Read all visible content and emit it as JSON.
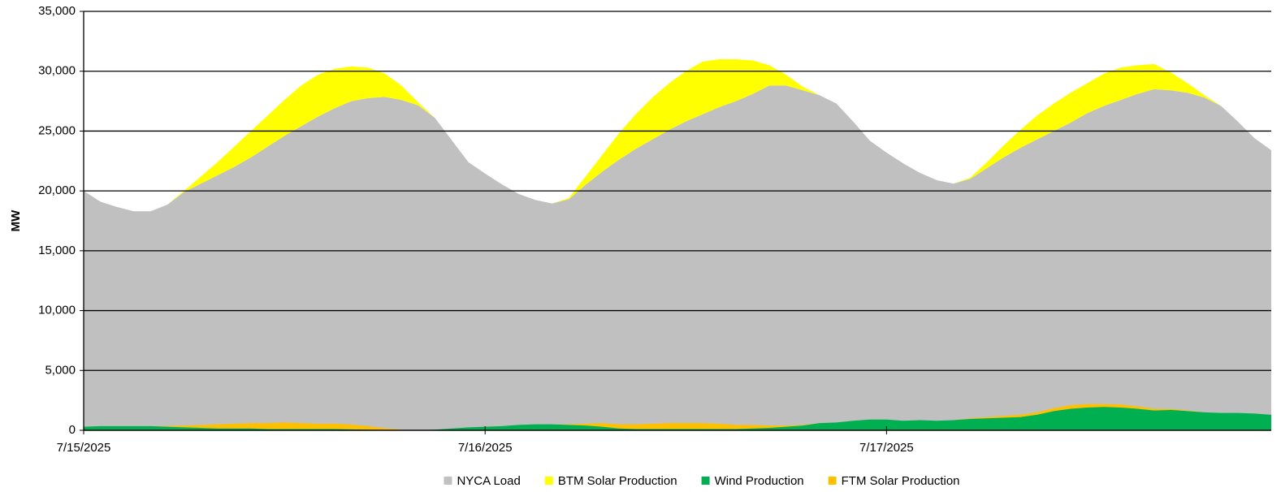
{
  "chart_data": {
    "type": "area",
    "y_label": "MW",
    "categories": [
      "7/15/2025",
      null,
      null,
      null,
      null,
      null,
      null,
      null,
      null,
      null,
      null,
      null,
      null,
      null,
      null,
      null,
      null,
      null,
      null,
      null,
      null,
      null,
      null,
      null,
      "7/16/2025",
      null,
      null,
      null,
      null,
      null,
      null,
      null,
      null,
      null,
      null,
      null,
      null,
      null,
      null,
      null,
      null,
      null,
      null,
      null,
      null,
      null,
      null,
      null,
      "7/17/2025",
      null,
      null,
      null,
      null,
      null,
      null,
      null,
      null,
      null,
      null,
      null,
      null,
      null,
      null,
      null,
      null,
      null,
      null,
      null,
      null,
      null,
      null,
      null
    ],
    "series": [
      {
        "name": "NYCA Load",
        "color": "#c0c0c0",
        "values": [
          20000,
          19100,
          18650,
          18300,
          18300,
          18850,
          19900,
          20600,
          21300,
          22000,
          22800,
          23700,
          24600,
          25400,
          26200,
          26900,
          27500,
          27750,
          27850,
          27600,
          27150,
          26100,
          24250,
          22400,
          21450,
          20550,
          19750,
          19250,
          18950,
          19300,
          20500,
          21600,
          22600,
          23500,
          24300,
          25100,
          25800,
          26400,
          27000,
          27500,
          28100,
          28800,
          28800,
          28400,
          28000,
          27300,
          25800,
          24200,
          23200,
          22300,
          21500,
          20900,
          20600,
          21000,
          21900,
          22800,
          23600,
          24300,
          25000,
          25700,
          26500,
          27100,
          27600,
          28100,
          28500,
          28400,
          28200,
          27800,
          27100,
          25800,
          24400,
          23400
        ]
      },
      {
        "name": "BTM Solar Production",
        "color": "#ffff00",
        "stack_on": 0,
        "values": [
          0,
          0,
          0,
          0,
          0,
          0,
          100,
          600,
          1100,
          1700,
          2200,
          2600,
          3000,
          3400,
          3500,
          3300,
          2900,
          2550,
          1950,
          1200,
          250,
          0,
          0,
          0,
          0,
          0,
          0,
          0,
          0,
          100,
          700,
          1400,
          2200,
          2900,
          3500,
          3900,
          4200,
          4400,
          4000,
          3500,
          2800,
          1700,
          900,
          300,
          0,
          0,
          0,
          0,
          0,
          0,
          0,
          0,
          0,
          100,
          500,
          1000,
          1500,
          2000,
          2300,
          2500,
          2500,
          2700,
          2700,
          2400,
          2100,
          1500,
          800,
          200,
          0,
          0,
          0,
          0
        ]
      },
      {
        "name": "Wind Production",
        "color": "#00b050",
        "values": [
          300,
          350,
          350,
          350,
          350,
          300,
          250,
          200,
          150,
          150,
          150,
          100,
          100,
          100,
          100,
          100,
          80,
          50,
          30,
          0,
          0,
          50,
          150,
          250,
          300,
          350,
          450,
          500,
          500,
          450,
          400,
          300,
          150,
          100,
          100,
          100,
          100,
          100,
          100,
          100,
          150,
          200,
          300,
          400,
          600,
          650,
          800,
          900,
          900,
          800,
          850,
          800,
          850,
          950,
          1000,
          1050,
          1100,
          1300,
          1600,
          1800,
          1900,
          1950,
          1900,
          1800,
          1650,
          1700,
          1600,
          1500,
          1450,
          1450,
          1400,
          1300
        ]
      },
      {
        "name": "FTM Solar Production",
        "color": "#ffc000",
        "stack_on": 2,
        "values": [
          0,
          0,
          0,
          0,
          0,
          50,
          150,
          250,
          350,
          400,
          450,
          500,
          550,
          500,
          450,
          450,
          400,
          300,
          150,
          50,
          0,
          0,
          0,
          0,
          0,
          0,
          0,
          0,
          0,
          50,
          150,
          300,
          350,
          400,
          450,
          500,
          500,
          500,
          450,
          350,
          300,
          200,
          100,
          50,
          0,
          0,
          0,
          0,
          0,
          0,
          0,
          0,
          0,
          50,
          100,
          150,
          200,
          200,
          250,
          300,
          300,
          250,
          250,
          200,
          150,
          100,
          50,
          0,
          0,
          0,
          0,
          0
        ]
      }
    ],
    "ylim": [
      0,
      35000
    ],
    "yticks": [
      {
        "value": 0,
        "label": "0"
      },
      {
        "value": 5000,
        "label": "5,000"
      },
      {
        "value": 10000,
        "label": "10,000"
      },
      {
        "value": 15000,
        "label": "15,000"
      },
      {
        "value": 20000,
        "label": "20,000"
      },
      {
        "value": 25000,
        "label": "25,000"
      },
      {
        "value": 30000,
        "label": "30,000"
      },
      {
        "value": 35000,
        "label": "35,000"
      }
    ],
    "grid": true,
    "legend": "bottom"
  }
}
